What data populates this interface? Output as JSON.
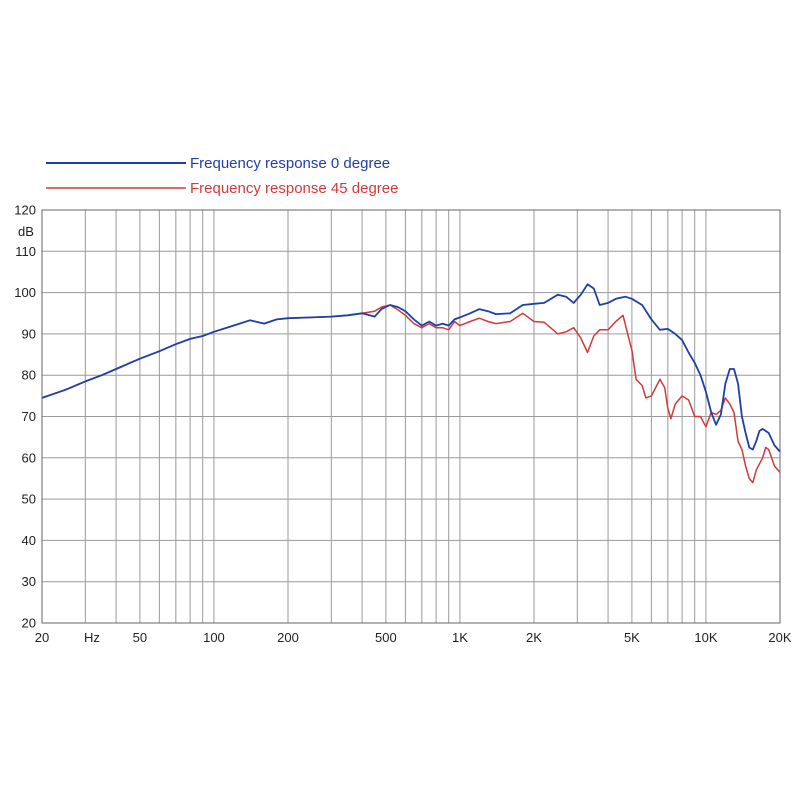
{
  "chart_data": {
    "type": "line",
    "x_scale": "log",
    "xlim": [
      20,
      20000
    ],
    "ylim": [
      20,
      120
    ],
    "y_unit_label": "dB",
    "x_unit_label": "Hz",
    "grid": true,
    "legend_position": "top-left",
    "x_ticks": [
      {
        "value": 20,
        "label": "20"
      },
      {
        "value": 50,
        "label": "50"
      },
      {
        "value": 100,
        "label": "100"
      },
      {
        "value": 200,
        "label": "200"
      },
      {
        "value": 500,
        "label": "500"
      },
      {
        "value": 1000,
        "label": "1K"
      },
      {
        "value": 2000,
        "label": "2K"
      },
      {
        "value": 5000,
        "label": "5K"
      },
      {
        "value": 10000,
        "label": "10K"
      },
      {
        "value": 20000,
        "label": "20K"
      }
    ],
    "y_ticks": [
      20,
      30,
      40,
      50,
      60,
      70,
      80,
      90,
      100,
      110,
      120
    ],
    "series": [
      {
        "name": "Frequency response 0 degree",
        "color": "#1f3fa8",
        "points": [
          [
            20,
            74.5
          ],
          [
            25,
            76.5
          ],
          [
            30,
            78.5
          ],
          [
            35,
            80
          ],
          [
            40,
            81.5
          ],
          [
            50,
            84
          ],
          [
            60,
            85.8
          ],
          [
            70,
            87.5
          ],
          [
            80,
            88.8
          ],
          [
            90,
            89.5
          ],
          [
            100,
            90.5
          ],
          [
            120,
            92
          ],
          [
            140,
            93.3
          ],
          [
            160,
            92.5
          ],
          [
            180,
            93.5
          ],
          [
            200,
            93.8
          ],
          [
            250,
            94
          ],
          [
            300,
            94.2
          ],
          [
            350,
            94.5
          ],
          [
            400,
            95
          ],
          [
            450,
            94.2
          ],
          [
            480,
            96
          ],
          [
            520,
            97
          ],
          [
            560,
            96.5
          ],
          [
            600,
            95.5
          ],
          [
            650,
            93.5
          ],
          [
            700,
            92
          ],
          [
            750,
            93
          ],
          [
            800,
            92
          ],
          [
            850,
            92.5
          ],
          [
            900,
            92
          ],
          [
            950,
            93.5
          ],
          [
            1000,
            94
          ],
          [
            1100,
            95
          ],
          [
            1200,
            96
          ],
          [
            1300,
            95.5
          ],
          [
            1400,
            94.8
          ],
          [
            1600,
            95
          ],
          [
            1800,
            97
          ],
          [
            2000,
            97.3
          ],
          [
            2200,
            97.5
          ],
          [
            2500,
            99.5
          ],
          [
            2700,
            99
          ],
          [
            2900,
            97.5
          ],
          [
            3100,
            99.5
          ],
          [
            3300,
            102
          ],
          [
            3500,
            101
          ],
          [
            3700,
            97
          ],
          [
            4000,
            97.5
          ],
          [
            4300,
            98.5
          ],
          [
            4700,
            99
          ],
          [
            5000,
            98.5
          ],
          [
            5500,
            97
          ],
          [
            6000,
            93.5
          ],
          [
            6500,
            91
          ],
          [
            7000,
            91.2
          ],
          [
            7500,
            90
          ],
          [
            8000,
            88.5
          ],
          [
            8500,
            85.5
          ],
          [
            9000,
            83
          ],
          [
            9500,
            80
          ],
          [
            10000,
            76
          ],
          [
            10500,
            71
          ],
          [
            11000,
            68
          ],
          [
            11500,
            70.5
          ],
          [
            12000,
            78
          ],
          [
            12500,
            81.5
          ],
          [
            13000,
            81.5
          ],
          [
            13500,
            78
          ],
          [
            14000,
            70
          ],
          [
            14500,
            66
          ],
          [
            15000,
            62.5
          ],
          [
            15500,
            62
          ],
          [
            16000,
            64
          ],
          [
            16500,
            66.5
          ],
          [
            17000,
            67
          ],
          [
            18000,
            66
          ],
          [
            19000,
            63
          ],
          [
            20000,
            61.5
          ]
        ]
      },
      {
        "name": "Frequency response 45 degree",
        "color": "#d33a3a",
        "points": [
          [
            20,
            74.5
          ],
          [
            25,
            76.5
          ],
          [
            30,
            78.5
          ],
          [
            35,
            80
          ],
          [
            40,
            81.5
          ],
          [
            50,
            84
          ],
          [
            60,
            85.8
          ],
          [
            70,
            87.5
          ],
          [
            80,
            88.8
          ],
          [
            90,
            89.5
          ],
          [
            100,
            90.5
          ],
          [
            120,
            92
          ],
          [
            140,
            93.3
          ],
          [
            160,
            92.5
          ],
          [
            180,
            93.5
          ],
          [
            200,
            93.8
          ],
          [
            250,
            94
          ],
          [
            300,
            94.2
          ],
          [
            350,
            94.5
          ],
          [
            400,
            95
          ],
          [
            450,
            95.5
          ],
          [
            480,
            96.5
          ],
          [
            520,
            97
          ],
          [
            560,
            95.8
          ],
          [
            600,
            94.5
          ],
          [
            650,
            92.5
          ],
          [
            700,
            91.5
          ],
          [
            750,
            92.5
          ],
          [
            800,
            91.5
          ],
          [
            850,
            91.5
          ],
          [
            900,
            91
          ],
          [
            950,
            93
          ],
          [
            1000,
            92
          ],
          [
            1100,
            93
          ],
          [
            1200,
            93.8
          ],
          [
            1300,
            93
          ],
          [
            1400,
            92.5
          ],
          [
            1600,
            93
          ],
          [
            1800,
            95
          ],
          [
            2000,
            93
          ],
          [
            2200,
            92.8
          ],
          [
            2500,
            90
          ],
          [
            2700,
            90.5
          ],
          [
            2900,
            91.5
          ],
          [
            3100,
            89
          ],
          [
            3300,
            85.5
          ],
          [
            3500,
            89.5
          ],
          [
            3700,
            91
          ],
          [
            4000,
            91
          ],
          [
            4300,
            93
          ],
          [
            4600,
            94.5
          ],
          [
            5000,
            86
          ],
          [
            5200,
            79
          ],
          [
            5500,
            77.5
          ],
          [
            5700,
            74.5
          ],
          [
            6000,
            75
          ],
          [
            6500,
            79
          ],
          [
            6800,
            77
          ],
          [
            7000,
            72
          ],
          [
            7200,
            69.5
          ],
          [
            7500,
            73
          ],
          [
            8000,
            75
          ],
          [
            8500,
            74
          ],
          [
            9000,
            70
          ],
          [
            9500,
            70
          ],
          [
            10000,
            67.5
          ],
          [
            10500,
            71
          ],
          [
            11000,
            70.5
          ],
          [
            11500,
            71.5
          ],
          [
            12000,
            74.5
          ],
          [
            12500,
            73
          ],
          [
            13000,
            71
          ],
          [
            13500,
            64
          ],
          [
            14000,
            62
          ],
          [
            14500,
            58
          ],
          [
            15000,
            55
          ],
          [
            15500,
            54
          ],
          [
            16000,
            57
          ],
          [
            17000,
            60
          ],
          [
            17500,
            62.5
          ],
          [
            18000,
            62
          ],
          [
            19000,
            58
          ],
          [
            20000,
            56.5
          ]
        ]
      }
    ]
  }
}
